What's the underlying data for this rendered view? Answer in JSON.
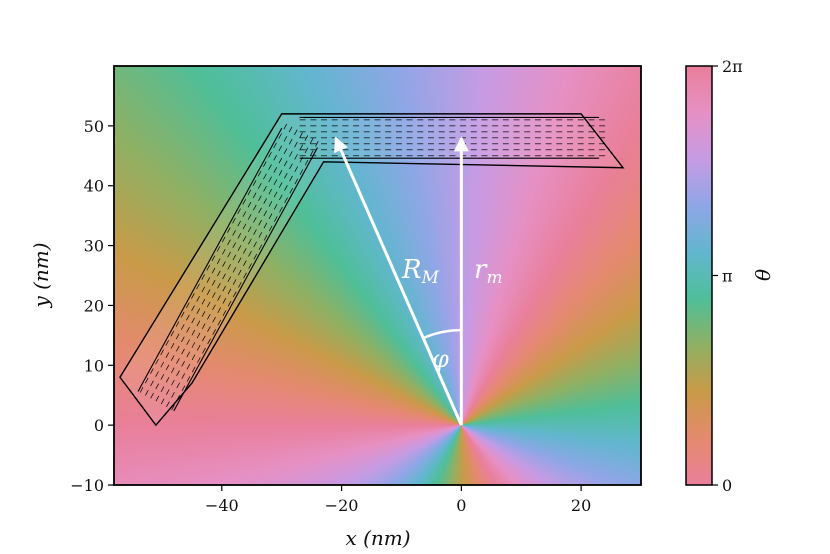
{
  "chart_data": {
    "type": "heatmap",
    "title": "",
    "xlabel": "x (nm)",
    "ylabel": "y (nm)",
    "xlim": [
      -58,
      30
    ],
    "ylim": [
      -10,
      60
    ],
    "xticks": [
      -40,
      -20,
      0,
      20
    ],
    "yticks": [
      -10,
      0,
      10,
      20,
      30,
      40,
      50
    ],
    "xtick_labels": [
      "−40",
      "−20",
      "0",
      "20"
    ],
    "ytick_labels": [
      "−10",
      "0",
      "10",
      "20",
      "30",
      "40",
      "50"
    ],
    "field": "theta = phase angle about origin, rotated colormap",
    "colorbar": {
      "label": "θ",
      "range": [
        0,
        6.2832
      ],
      "ticks": [
        0,
        3.1416,
        6.2832
      ],
      "tick_labels": [
        "0",
        "π",
        "2π"
      ],
      "colors": [
        "#e97f9a",
        "#e48a6e",
        "#c99a48",
        "#8fb063",
        "#4fbf99",
        "#62b6cf",
        "#8fa6e6",
        "#c69be4",
        "#e690c4",
        "#e97f9a"
      ]
    },
    "structure": {
      "name": "bent strip with arrow field",
      "outline": [
        [
          -51,
          0
        ],
        [
          -57,
          8
        ],
        [
          -30,
          52
        ],
        [
          20,
          52
        ],
        [
          27,
          43
        ],
        [
          -23,
          44
        ],
        [
          -45,
          7
        ]
      ],
      "corner": [
        -27,
        48
      ],
      "arm_end_left": [
        -51,
        4
      ],
      "arm_end_right": [
        23,
        48
      ]
    },
    "annotations": {
      "vector_RM": {
        "label": "R",
        "subscript": "M",
        "from": [
          0,
          0
        ],
        "to": [
          -21,
          48
        ]
      },
      "vector_rm": {
        "label": "r",
        "subscript": "m",
        "from": [
          0,
          0
        ],
        "to": [
          0,
          48
        ]
      },
      "angle": {
        "label": "φ"
      }
    }
  }
}
